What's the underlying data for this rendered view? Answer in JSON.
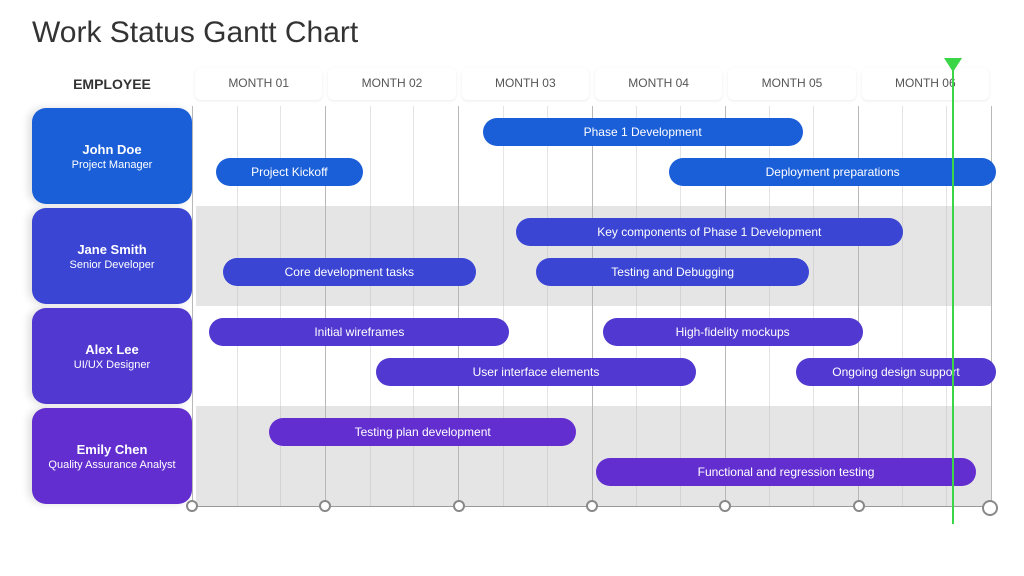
{
  "title": "Work Status Gantt Chart",
  "employee_header": "EMPLOYEE",
  "months": [
    "MONTH 01",
    "MONTH 02",
    "MONTH 03",
    "MONTH 04",
    "MONTH 05",
    "MONTH 06"
  ],
  "month_count": 6,
  "today_position": 5.7,
  "today_marker_color": "#3ad648",
  "background_color": "#ffffff",
  "gridline_color": "#b8b8b8",
  "minor_gridline_color": "#e4e4e4",
  "alt_row_bg": "rgba(180,180,180,0.35)",
  "employees": [
    {
      "name": "John Doe",
      "role": "Project Manager",
      "card_color": "#1a5fd8",
      "alt": false,
      "tasks": [
        {
          "label": "Phase 1 Development",
          "start": 2.15,
          "end": 4.55,
          "row": 0,
          "color": "#1a5fd8"
        },
        {
          "label": "Project Kickoff",
          "start": 0.15,
          "end": 1.25,
          "row": 1,
          "color": "#1a5fd8"
        },
        {
          "label": "Deployment preparations",
          "start": 3.55,
          "end": 6.0,
          "row": 1,
          "color": "#1a5fd8"
        }
      ]
    },
    {
      "name": "Jane Smith",
      "role": "Senior Developer",
      "card_color": "#3a45d4",
      "alt": true,
      "tasks": [
        {
          "label": "Key components of Phase 1 Development",
          "start": 2.4,
          "end": 5.3,
          "row": 0,
          "color": "#3a45d4"
        },
        {
          "label": "Core development tasks",
          "start": 0.2,
          "end": 2.1,
          "row": 1,
          "color": "#3a45d4"
        },
        {
          "label": "Testing and Debugging",
          "start": 2.55,
          "end": 4.6,
          "row": 1,
          "color": "#3a45d4"
        }
      ]
    },
    {
      "name": "Alex Lee",
      "role": "UI/UX Designer",
      "card_color": "#5038d0",
      "alt": false,
      "tasks": [
        {
          "label": "Initial wireframes",
          "start": 0.1,
          "end": 2.35,
          "row": 0,
          "color": "#5038d0"
        },
        {
          "label": "High-fidelity mockups",
          "start": 3.05,
          "end": 5.0,
          "row": 0,
          "color": "#5038d0"
        },
        {
          "label": "User interface elements",
          "start": 1.35,
          "end": 3.75,
          "row": 1,
          "color": "#5038d0"
        },
        {
          "label": "Ongoing design support",
          "start": 4.5,
          "end": 6.0,
          "row": 1,
          "color": "#5038d0"
        }
      ]
    },
    {
      "name": "Emily Chen",
      "role": "Quality Assurance Analyst",
      "card_color": "#622ed0",
      "alt": true,
      "tasks": [
        {
          "label": "Testing plan development",
          "start": 0.55,
          "end": 2.85,
          "row": 0,
          "color": "#622ed0"
        },
        {
          "label": "Functional and regression testing",
          "start": 3.0,
          "end": 5.85,
          "row": 1,
          "color": "#622ed0"
        }
      ]
    }
  ]
}
